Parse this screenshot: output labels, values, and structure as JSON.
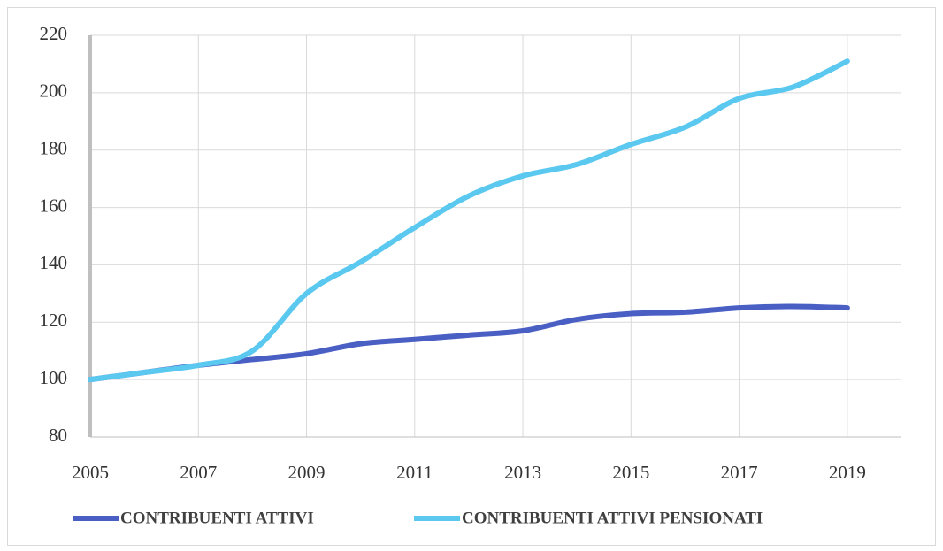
{
  "chart_data": {
    "type": "line",
    "x": [
      2005,
      2006,
      2007,
      2008,
      2009,
      2010,
      2011,
      2012,
      2013,
      2014,
      2015,
      2016,
      2017,
      2018,
      2019
    ],
    "series": [
      {
        "name": "CONTRIBUENTI ATTIVI",
        "color": "#4a5fc4",
        "values": [
          100,
          102.5,
          105,
          107,
          109,
          112.5,
          114,
          115.5,
          117,
          121,
          123,
          123.5,
          125,
          125.5,
          125
        ]
      },
      {
        "name": "CONTRIBUENTI ATTIVI PENSIONATI",
        "color": "#5bc8ef",
        "values": [
          100,
          102.5,
          105,
          110,
          130,
          141,
          153,
          164,
          171,
          175,
          182,
          188,
          198,
          202,
          211
        ]
      }
    ],
    "xlim": [
      2005,
      2020
    ],
    "xticks": [
      2005,
      2007,
      2009,
      2011,
      2013,
      2015,
      2017,
      2019
    ],
    "ylim": [
      80,
      220
    ],
    "yticks": [
      80,
      100,
      120,
      140,
      160,
      180,
      200,
      220
    ],
    "grid": true,
    "legend": "bottom"
  }
}
